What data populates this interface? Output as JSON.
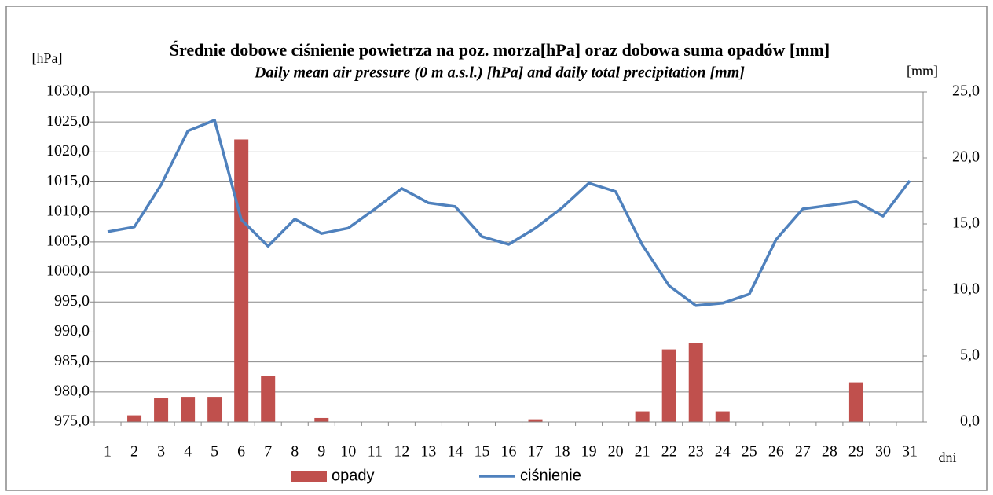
{
  "chart_data": {
    "type": "combo",
    "title": "Średnie dobowe ciśnienie powietrza na poz. morza[hPa] oraz dobowa suma opadów [mm]",
    "subtitle": "Daily mean air pressure (0 m a.s.l.) [hPa] and daily total precipitation [mm]",
    "y_label": "[hPa]",
    "y2_label": "[mm]",
    "x_label": "dni",
    "categories": [
      "1",
      "2",
      "3",
      "4",
      "5",
      "6",
      "7",
      "8",
      "9",
      "10",
      "11",
      "12",
      "13",
      "14",
      "15",
      "16",
      "17",
      "18",
      "19",
      "20",
      "21",
      "22",
      "23",
      "24",
      "25",
      "26",
      "27",
      "28",
      "29",
      "30",
      "31"
    ],
    "series": [
      {
        "name": "opady",
        "type": "bar",
        "axis": "y2",
        "color": "#c0504d",
        "values": [
          0,
          0.5,
          1.8,
          1.9,
          1.9,
          21.4,
          3.5,
          0,
          0.3,
          0,
          0,
          0,
          0,
          0,
          0,
          0,
          0.2,
          0,
          0,
          0,
          0.8,
          5.5,
          6.0,
          0.8,
          0,
          0,
          0,
          0,
          3.0,
          0,
          0
        ]
      },
      {
        "name": "ciśnienie",
        "type": "line",
        "color": "#4f81bd",
        "values": [
          1006.7,
          1007.5,
          1014.5,
          1023.5,
          1025.3,
          1008.7,
          1004.3,
          1008.8,
          1006.4,
          1007.3,
          1010.5,
          1013.9,
          1011.5,
          1010.9,
          1005.9,
          1004.6,
          1007.3,
          1010.7,
          1014.8,
          1013.4,
          1004.5,
          997.7,
          994.4,
          994.8,
          996.3,
          1005.4,
          1010.5,
          1011.1,
          1011.7,
          1009.3,
          1015.2
        ]
      }
    ],
    "ylim": [
      975,
      1030
    ],
    "yticks": [
      {
        "value": 975,
        "label": "975,0"
      },
      {
        "value": 980,
        "label": "980,0"
      },
      {
        "value": 985,
        "label": "985,0"
      },
      {
        "value": 990,
        "label": "990,0"
      },
      {
        "value": 995,
        "label": "995,0"
      },
      {
        "value": 1000,
        "label": "1000,0"
      },
      {
        "value": 1005,
        "label": "1005,0"
      },
      {
        "value": 1010,
        "label": "1010,0"
      },
      {
        "value": 1015,
        "label": "1015,0"
      },
      {
        "value": 1020,
        "label": "1020,0"
      },
      {
        "value": 1025,
        "label": "1025,0"
      },
      {
        "value": 1030,
        "label": "1030,0"
      }
    ],
    "y2lim": [
      0,
      25
    ],
    "y2ticks": [
      {
        "value": 0,
        "label": "0,0"
      },
      {
        "value": 5,
        "label": "5,0"
      },
      {
        "value": 10,
        "label": "10,0"
      },
      {
        "value": 15,
        "label": "15,0"
      },
      {
        "value": 20,
        "label": "20,0"
      },
      {
        "value": 25,
        "label": "25,0"
      }
    ],
    "grid": true,
    "legend": "bottom"
  }
}
